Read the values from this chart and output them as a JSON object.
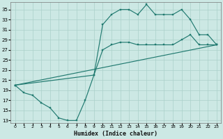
{
  "bg_color": "#cce8e4",
  "grid_color": "#aad0ca",
  "line_color": "#217a70",
  "xlabel": "Humidex (Indice chaleur)",
  "xlim": [
    -0.5,
    23.5
  ],
  "ylim": [
    12.5,
    36.5
  ],
  "xticks": [
    0,
    1,
    2,
    3,
    4,
    5,
    6,
    7,
    8,
    9,
    10,
    11,
    12,
    13,
    14,
    15,
    16,
    17,
    18,
    19,
    20,
    21,
    22,
    23
  ],
  "yticks": [
    13,
    15,
    17,
    19,
    21,
    23,
    25,
    27,
    29,
    31,
    33,
    35
  ],
  "curve1_x": [
    0,
    1,
    2,
    3,
    4,
    5,
    6,
    7,
    8,
    9,
    10,
    11,
    12,
    13,
    14,
    15,
    16,
    17,
    18,
    19,
    20,
    21,
    22,
    23
  ],
  "curve1_y": [
    20,
    18.5,
    18,
    16.5,
    15.5,
    13.5,
    13,
    13,
    17,
    22,
    32,
    34,
    35,
    35,
    34,
    36,
    34,
    34,
    34,
    35,
    33,
    30,
    30,
    28
  ],
  "curve2_x": [
    0,
    9,
    10,
    11,
    12,
    13,
    14,
    15,
    16,
    17,
    18,
    19,
    20,
    21,
    22,
    23
  ],
  "curve2_y": [
    20,
    22,
    27,
    28,
    28.5,
    28.5,
    28,
    28,
    28,
    28,
    28,
    29,
    30,
    28,
    28,
    28
  ],
  "curve3_x": [
    0,
    23
  ],
  "curve3_y": [
    20,
    28
  ]
}
